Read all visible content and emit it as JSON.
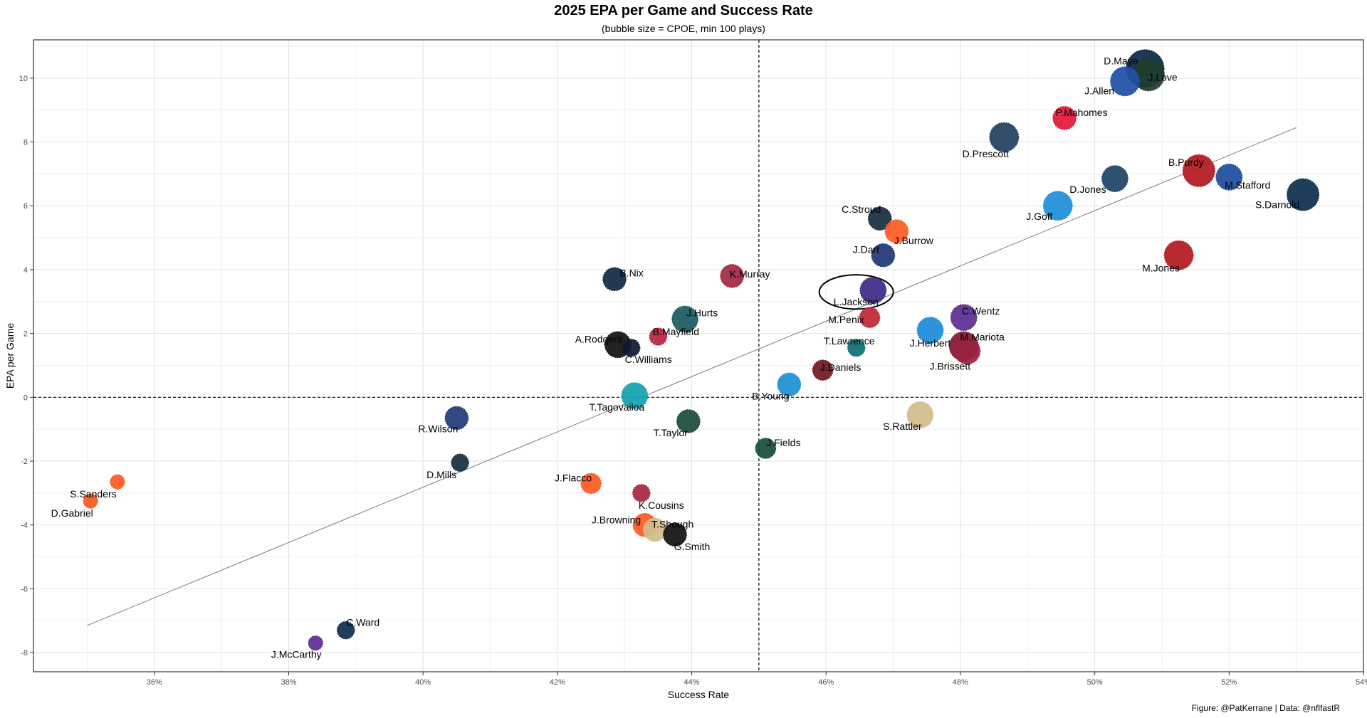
{
  "chart_data": {
    "type": "scatter",
    "title": "2025 EPA per Game and Success Rate",
    "subtitle": "(bubble size = CPOE, min 100 plays)",
    "xlabel": "Success Rate",
    "ylabel": "EPA per Game",
    "caption": "Figure: @PatKerrane | Data: @nflfastR",
    "xlim": [
      34.2,
      54.0
    ],
    "ylim": [
      -8.6,
      11.2
    ],
    "x_ticks": [
      {
        "value": 36,
        "label": "36%"
      },
      {
        "value": 38,
        "label": "38%"
      },
      {
        "value": 40,
        "label": "40%"
      },
      {
        "value": 42,
        "label": "42%"
      },
      {
        "value": 44,
        "label": "44%"
      },
      {
        "value": 46,
        "label": "46%"
      },
      {
        "value": 48,
        "label": "48%"
      },
      {
        "value": 50,
        "label": "50%"
      },
      {
        "value": 52,
        "label": "52%"
      },
      {
        "value": 54,
        "label": "54%"
      }
    ],
    "y_ticks": [
      {
        "value": -8,
        "label": "-8"
      },
      {
        "value": -6,
        "label": "-6"
      },
      {
        "value": -4,
        "label": "-4"
      },
      {
        "value": -2,
        "label": "-2"
      },
      {
        "value": 0,
        "label": "0"
      },
      {
        "value": 2,
        "label": "2"
      },
      {
        "value": 4,
        "label": "4"
      },
      {
        "value": 6,
        "label": "6"
      },
      {
        "value": 8,
        "label": "8"
      },
      {
        "value": 10,
        "label": "10"
      }
    ],
    "reference_lines": {
      "x": 45.0,
      "y": 0
    },
    "trend_line": {
      "x1": 35.0,
      "y1": -7.15,
      "x2": 53.0,
      "y2": 8.45
    },
    "highlight": {
      "label": "L.Jackson",
      "x": 46.45,
      "y": 3.3
    },
    "points": [
      {
        "label": "D.Maye",
        "x": 50.75,
        "y": 10.3,
        "cpoe": 10,
        "color": "#0e2846"
      },
      {
        "label": "J.Love",
        "x": 50.8,
        "y": 10.1,
        "cpoe": 8,
        "color": "#1f3d2c"
      },
      {
        "label": "J.Allen",
        "x": 50.45,
        "y": 9.9,
        "cpoe": 7,
        "color": "#2150a6"
      },
      {
        "label": "P.Mahomes",
        "x": 49.55,
        "y": 8.75,
        "cpoe": 5,
        "color": "#e31837"
      },
      {
        "label": "D.Prescott",
        "x": 48.65,
        "y": 8.15,
        "cpoe": 7,
        "color": "#223e60"
      },
      {
        "label": "B.Purdy",
        "x": 51.55,
        "y": 7.1,
        "cpoe": 8,
        "color": "#b31920"
      },
      {
        "label": "M.Stafford",
        "x": 52.0,
        "y": 6.9,
        "cpoe": 6,
        "color": "#1d4ca0"
      },
      {
        "label": "S.Darnold",
        "x": 53.1,
        "y": 6.35,
        "cpoe": 8,
        "color": "#0c2e4e"
      },
      {
        "label": "D.Jones",
        "x": 50.3,
        "y": 6.85,
        "cpoe": 6,
        "color": "#1f4466"
      },
      {
        "label": "J.Goff",
        "x": 49.45,
        "y": 6.0,
        "cpoe": 7,
        "color": "#1f8ed6"
      },
      {
        "label": "C.Stroud",
        "x": 46.8,
        "y": 5.6,
        "cpoe": 5,
        "color": "#172d3e"
      },
      {
        "label": "J.Burrow",
        "x": 47.05,
        "y": 5.2,
        "cpoe": 5,
        "color": "#fb5a24"
      },
      {
        "label": "J.Dart",
        "x": 46.85,
        "y": 4.45,
        "cpoe": 5,
        "color": "#203875"
      },
      {
        "label": "M.Jones",
        "x": 51.25,
        "y": 4.45,
        "cpoe": 7,
        "color": "#b31920"
      },
      {
        "label": "K.Murray",
        "x": 44.6,
        "y": 3.8,
        "cpoe": 5,
        "color": "#a5273f"
      },
      {
        "label": "B.Nix",
        "x": 42.85,
        "y": 3.7,
        "cpoe": 5,
        "color": "#102a48"
      },
      {
        "label": "L.Jackson",
        "x": 46.7,
        "y": 3.35,
        "cpoe": 6,
        "color": "#3d2b87"
      },
      {
        "label": "C.Wentz",
        "x": 48.05,
        "y": 2.5,
        "cpoe": 6,
        "color": "#5b2d92"
      },
      {
        "label": "M.Penix",
        "x": 46.65,
        "y": 2.5,
        "cpoe": 4,
        "color": "#bf2638"
      },
      {
        "label": "J.Hurts",
        "x": 43.9,
        "y": 2.45,
        "cpoe": 6,
        "color": "#1c5a61"
      },
      {
        "label": "J.Herbert",
        "x": 47.55,
        "y": 2.1,
        "cpoe": 6,
        "color": "#1d8cd8"
      },
      {
        "label": "B.Mayfield",
        "x": 43.5,
        "y": 1.9,
        "cpoe": 3,
        "color": "#b5273f"
      },
      {
        "label": "A.Rodgers",
        "x": 42.9,
        "y": 1.65,
        "cpoe": 6,
        "color": "#121212"
      },
      {
        "label": "C.Williams",
        "x": 43.1,
        "y": 1.55,
        "cpoe": 3,
        "color": "#0e1a33"
      },
      {
        "label": "T.Lawrence",
        "x": 46.45,
        "y": 1.55,
        "cpoe": 3,
        "color": "#106f76"
      },
      {
        "label": "M.Mariota",
        "x": 48.05,
        "y": 1.6,
        "cpoe": 7,
        "color": "#801832"
      },
      {
        "label": "J.Brissett",
        "x": 48.1,
        "y": 1.45,
        "cpoe": 6,
        "color": "#97233f"
      },
      {
        "label": "J.Daniels",
        "x": 45.95,
        "y": 0.85,
        "cpoe": 4,
        "color": "#6f1a22"
      },
      {
        "label": "B.Young",
        "x": 45.45,
        "y": 0.4,
        "cpoe": 5,
        "color": "#1d8fd5"
      },
      {
        "label": "T.Tagovailoa",
        "x": 43.15,
        "y": 0.05,
        "cpoe": 6,
        "color": "#12a3ad"
      },
      {
        "label": "S.Rattler",
        "x": 47.4,
        "y": -0.55,
        "cpoe": 6,
        "color": "#d3bc8d"
      },
      {
        "label": "R.Wilson",
        "x": 40.5,
        "y": -0.65,
        "cpoe": 5,
        "color": "#24397a"
      },
      {
        "label": "T.Taylor",
        "x": 43.95,
        "y": -0.75,
        "cpoe": 5,
        "color": "#1b4c3c"
      },
      {
        "label": "J.Fields",
        "x": 45.1,
        "y": -1.6,
        "cpoe": 4,
        "color": "#1b4c3c"
      },
      {
        "label": "D.Mills",
        "x": 40.55,
        "y": -2.05,
        "cpoe": 3,
        "color": "#162e40"
      },
      {
        "label": "S.Sanders",
        "x": 35.45,
        "y": -2.65,
        "cpoe": 2,
        "color": "#fb5a24"
      },
      {
        "label": "J.Flacco",
        "x": 42.5,
        "y": -2.7,
        "cpoe": 4,
        "color": "#fb5a24"
      },
      {
        "label": "K.Cousins",
        "x": 43.25,
        "y": -3.0,
        "cpoe": 3,
        "color": "#a5273f"
      },
      {
        "label": "D.Gabriel",
        "x": 35.05,
        "y": -3.25,
        "cpoe": 2,
        "color": "#f45a24"
      },
      {
        "label": "J.Browning",
        "x": 43.3,
        "y": -4.0,
        "cpoe": 5,
        "color": "#fb5a24"
      },
      {
        "label": "T.Shough",
        "x": 43.45,
        "y": -4.15,
        "cpoe": 5,
        "color": "#d3bc8d"
      },
      {
        "label": "G.Smith",
        "x": 43.75,
        "y": -4.3,
        "cpoe": 5,
        "color": "#121212"
      },
      {
        "label": "C.Ward",
        "x": 38.85,
        "y": -7.3,
        "cpoe": 3,
        "color": "#0f2f4a"
      },
      {
        "label": "J.McCarthy",
        "x": 38.4,
        "y": -7.7,
        "cpoe": 2,
        "color": "#5b2d92"
      }
    ]
  }
}
